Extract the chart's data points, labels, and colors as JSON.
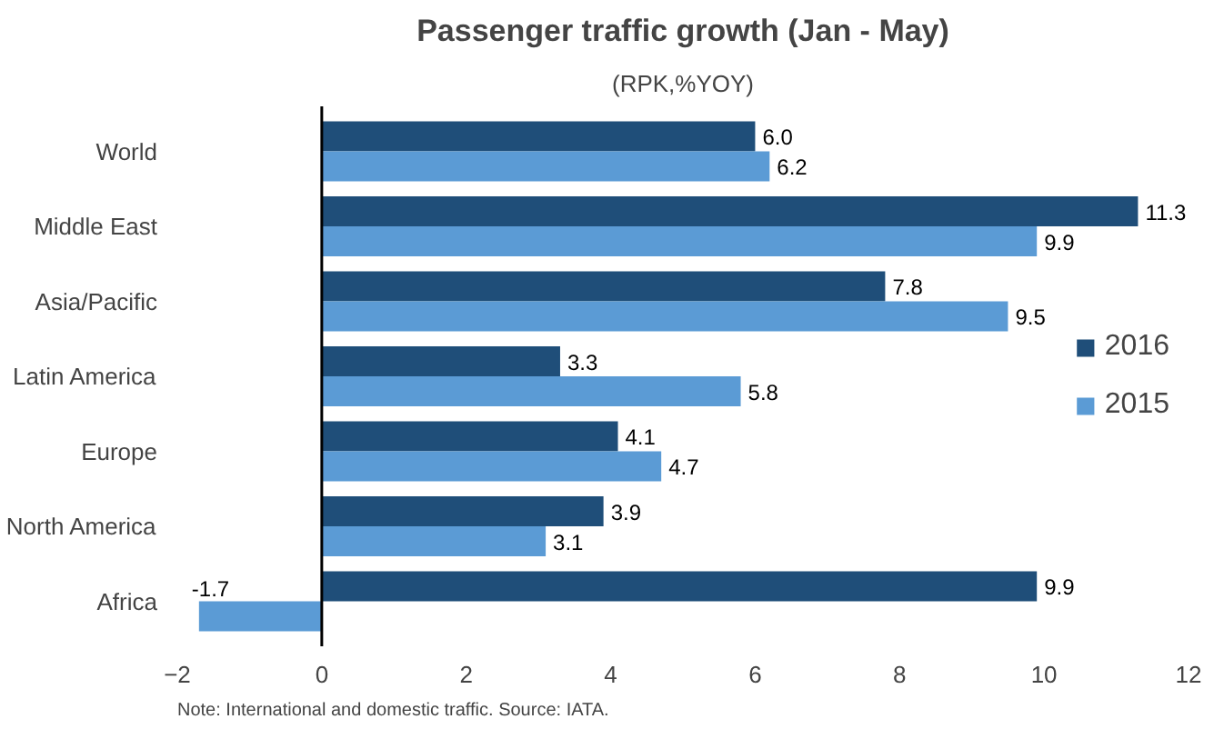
{
  "chart_data": {
    "type": "bar",
    "orientation": "horizontal",
    "title": "Passenger traffic growth (Jan - May)",
    "subtitle": "(RPK,%YOY)",
    "categories": [
      "World",
      "Middle East",
      "Asia/Pacific",
      "Latin America",
      "Europe",
      "North America",
      "Africa"
    ],
    "series": [
      {
        "name": "2016",
        "color": "#1f4e79",
        "values": [
          6.0,
          11.3,
          7.8,
          3.3,
          4.1,
          3.9,
          9.9
        ],
        "value_labels": [
          "6.0",
          "11.3",
          "7.8",
          "3.3",
          "4.1",
          "3.9",
          "9.9"
        ]
      },
      {
        "name": "2015",
        "color": "#5b9bd5",
        "values": [
          6.2,
          9.9,
          9.5,
          5.8,
          4.7,
          3.1,
          -1.7
        ],
        "value_labels": [
          "6.2",
          "9.9",
          "9.5",
          "5.8",
          "4.7",
          "3.1",
          "-1.7"
        ]
      }
    ],
    "xlim": [
      -2,
      12
    ],
    "xticks": [
      -2,
      0,
      2,
      4,
      6,
      8,
      10,
      12
    ],
    "grid": false,
    "ref_lines": [
      {
        "axis": "x",
        "value": 0,
        "color": "#000000"
      }
    ],
    "legend": "right",
    "annotations": [
      "Note: International and domestic traffic.    Source: IATA."
    ]
  }
}
